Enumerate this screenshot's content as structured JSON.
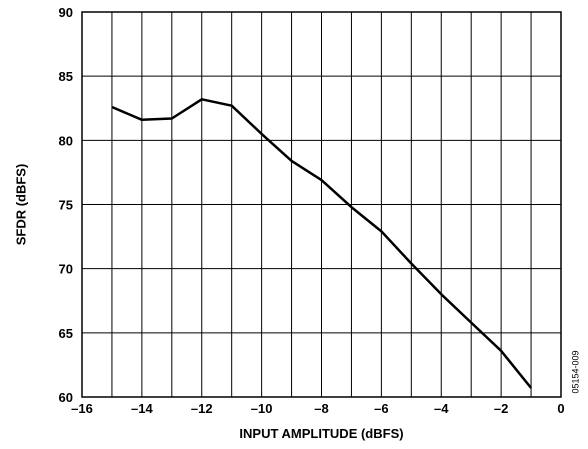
{
  "chart_data": {
    "type": "line",
    "xlabel": "INPUT AMPLITUDE (dBFS)",
    "ylabel": "SFDR (dBFS)",
    "xlim": [
      -16,
      0
    ],
    "ylim": [
      60,
      90
    ],
    "x_ticks": [
      -16,
      -14,
      -12,
      -10,
      -8,
      -6,
      -4,
      -2,
      0
    ],
    "x_tick_labels": [
      "–16",
      "–14",
      "–12",
      "–10",
      "–8",
      "–6",
      "–4",
      "–2",
      "0"
    ],
    "y_ticks": [
      60,
      65,
      70,
      75,
      80,
      85,
      90
    ],
    "y_tick_labels": [
      "60",
      "65",
      "70",
      "75",
      "80",
      "85",
      "90"
    ],
    "grid": true,
    "series": [
      {
        "x": [
          -15,
          -14,
          -13,
          -12,
          -11,
          -10,
          -9,
          -8,
          -7,
          -6,
          -5,
          -4,
          -3,
          -2,
          -1
        ],
        "values": [
          82.6,
          81.6,
          81.7,
          83.2,
          82.7,
          80.5,
          78.4,
          76.9,
          74.8,
          72.9,
          70.4,
          68.0,
          65.8,
          63.6,
          60.7
        ]
      }
    ],
    "figure_id": "05154-009"
  }
}
